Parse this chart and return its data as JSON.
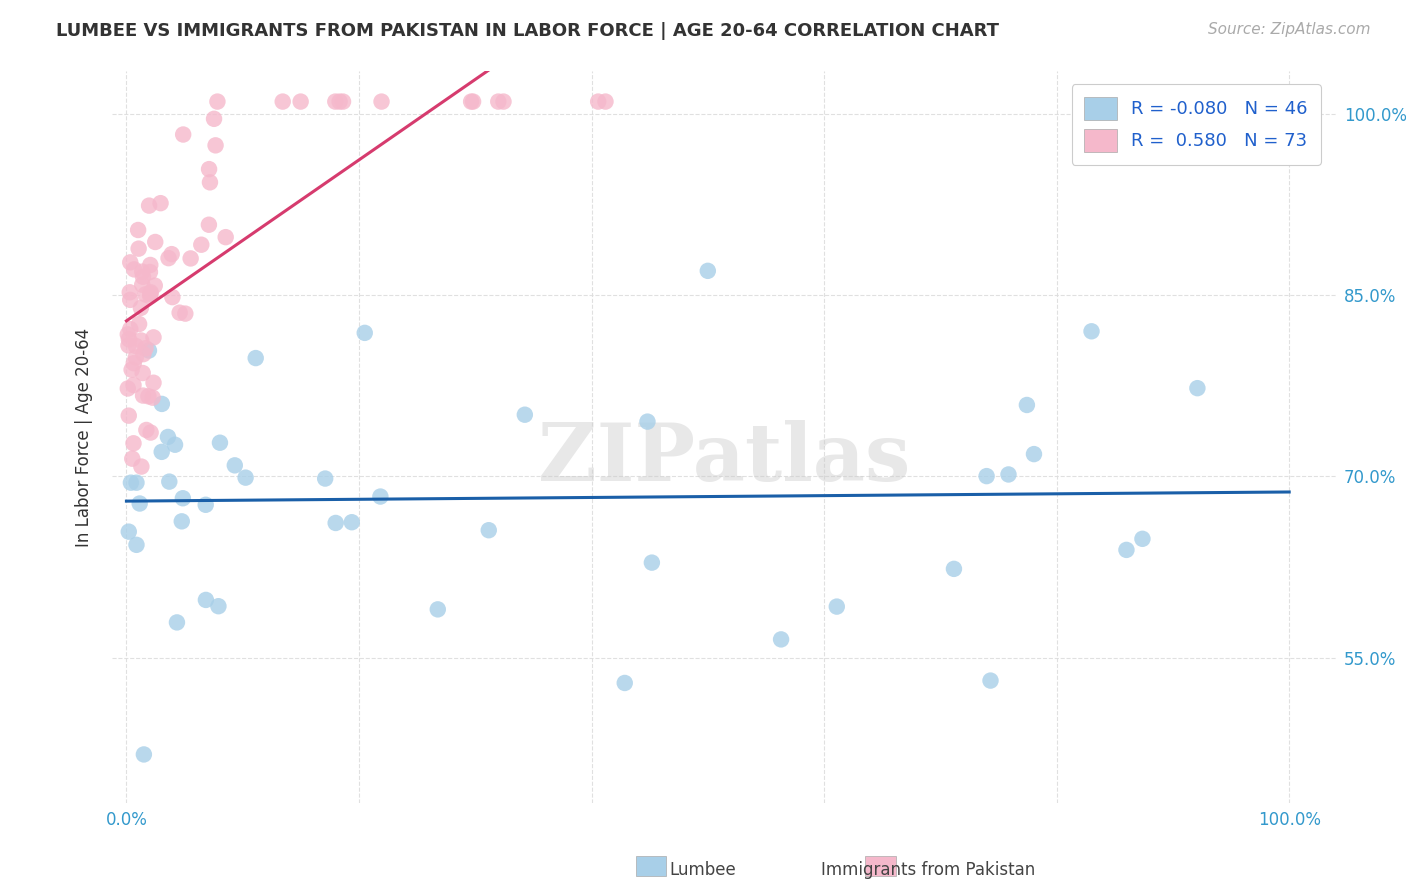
{
  "title": "LUMBEE VS IMMIGRANTS FROM PAKISTAN IN LABOR FORCE | AGE 20-64 CORRELATION CHART",
  "source": "Source: ZipAtlas.com",
  "ylabel": "In Labor Force | Age 20-64",
  "legend_r_lumbee": "-0.080",
  "legend_n_lumbee": "46",
  "legend_r_pakistan": "0.580",
  "legend_n_pakistan": "73",
  "blue_color": "#a8cfe8",
  "pink_color": "#f5b8cb",
  "blue_line_color": "#1a5fa8",
  "pink_line_color": "#d63b6e",
  "watermark": "ZIPatlas",
  "background_color": "#ffffff",
  "grid_color": "#dddddd",
  "tick_color": "#3399cc",
  "title_color": "#333333",
  "source_color": "#aaaaaa"
}
